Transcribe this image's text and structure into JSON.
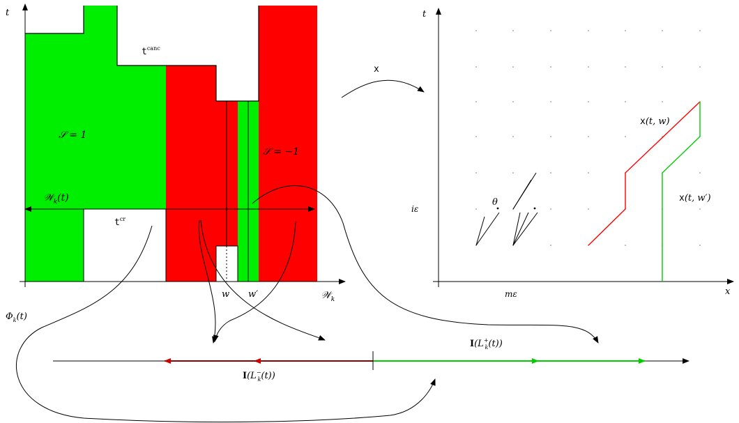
{
  "colors": {
    "positive": "#00ee00",
    "negative": "#ff0000",
    "dark_red": "#8b0000",
    "bright_green": "#00cc00",
    "ink": "#000000",
    "dot": "#777777",
    "background": "#ffffff"
  },
  "left_panel": {
    "y_axis_label": "t",
    "x_axis_label": "𝒲",
    "x_axis_label_sub": "k",
    "canc_label_main": "t",
    "canc_label_sup": "canc",
    "cr_label_main": "t",
    "cr_label_sup": "cr",
    "s_pos_label": "𝒮 = 1",
    "s_neg_label": "𝒮 = −1",
    "wk_label": "𝒲",
    "wk_label_sub": "k",
    "wk_label_arg": "(t)",
    "w_label": "w",
    "w_prime_label": "w′",
    "phi_label": "Φ",
    "phi_label_sub": "k",
    "phi_label_arg": "(t)"
  },
  "map_label": "x",
  "right_panel": {
    "y_axis_label": "t",
    "x_axis_label": "x",
    "ie_label": "iε",
    "me_label": "mε",
    "theta_label": "θ",
    "xtw_label_main": "x",
    "xtw_label_arg": "(t, w)",
    "xtwp_label_main": "x",
    "xtwp_label_arg": "(t, w′)"
  },
  "bottom": {
    "i_plus_main": "I",
    "i_plus_arg_open": "(L",
    "i_plus_sup": "+",
    "i_plus_sub": "k",
    "i_plus_arg_close": "(t))",
    "i_minus_main": "I",
    "i_minus_arg_open": "(L",
    "i_minus_sup": "−",
    "i_minus_sub": "k",
    "i_minus_arg_close": "(t))"
  }
}
